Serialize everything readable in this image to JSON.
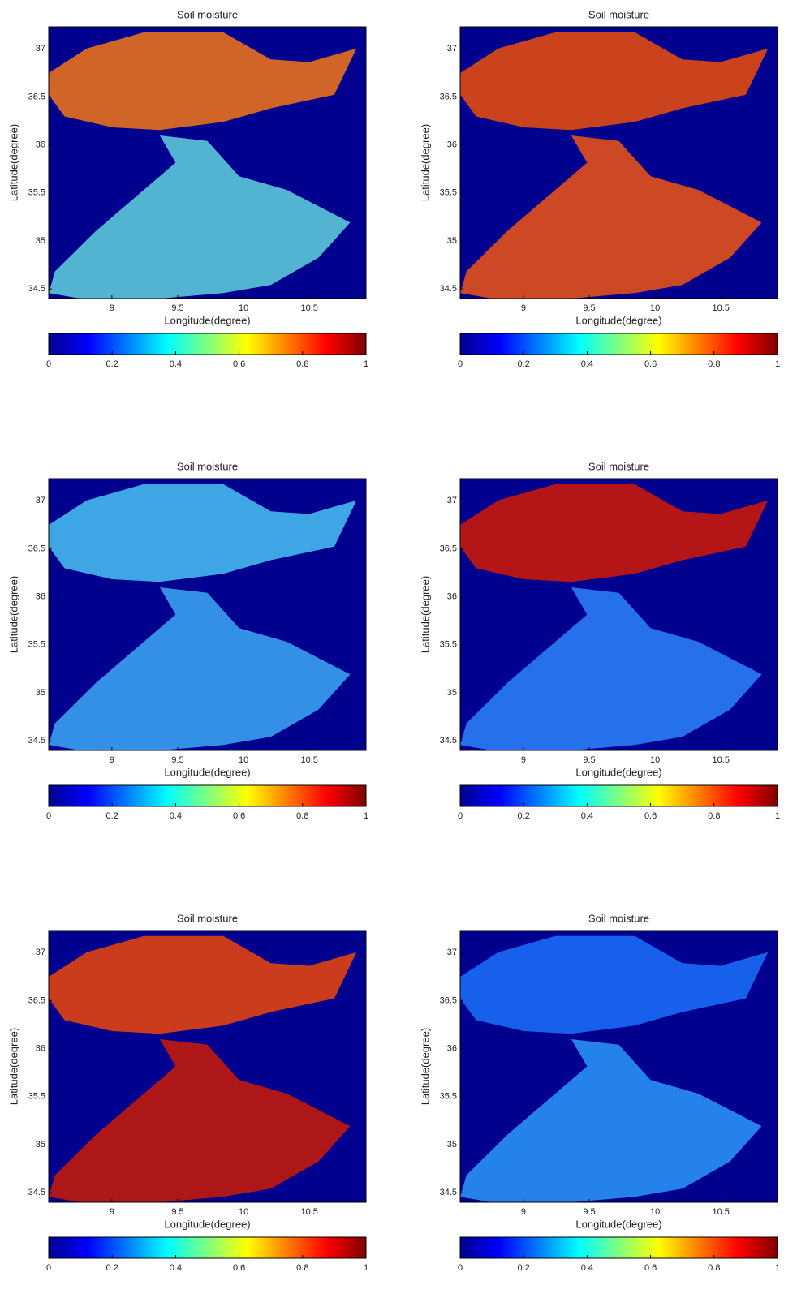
{
  "chart_data": [
    {
      "type": "heatmap",
      "title": "Soil moisture",
      "xlabel": "Longitude(degree)",
      "ylabel": "Latitude(degree)",
      "xlim": [
        8.52,
        10.93
      ],
      "ylim": [
        34.4,
        37.23
      ],
      "xticks": [
        9,
        9.5,
        10,
        10.5
      ],
      "yticks": [
        34.5,
        35,
        35.5,
        36,
        36.5,
        37
      ],
      "colorbar": {
        "lim": [
          0,
          1
        ],
        "ticks": [
          0,
          0.2,
          0.4,
          0.6,
          0.8,
          1
        ]
      }
    },
    {
      "type": "heatmap",
      "title": "Soil moisture",
      "xlabel": "Longitude(degree)",
      "ylabel": "Latitude(degree)",
      "xlim": [
        8.52,
        10.93
      ],
      "ylim": [
        34.4,
        37.23
      ],
      "xticks": [
        9,
        9.5,
        10,
        10.5
      ],
      "yticks": [
        34.5,
        35,
        35.5,
        36,
        36.5,
        37
      ],
      "colorbar": {
        "lim": [
          0,
          1
        ],
        "ticks": [
          0,
          0.2,
          0.4,
          0.6,
          0.8,
          1
        ]
      }
    },
    {
      "type": "heatmap",
      "title": "Soil moisture",
      "xlabel": "Longitude(degree)",
      "ylabel": "Latitude(degree)",
      "xlim": [
        8.52,
        10.93
      ],
      "ylim": [
        34.4,
        37.23
      ],
      "xticks": [
        9,
        9.5,
        10,
        10.5
      ],
      "yticks": [
        34.5,
        35,
        35.5,
        36,
        36.5,
        37
      ],
      "colorbar": {
        "lim": [
          0,
          1
        ],
        "ticks": [
          0,
          0.2,
          0.4,
          0.6,
          0.8,
          1
        ]
      }
    },
    {
      "type": "heatmap",
      "title": "Soil moisture",
      "xlabel": "Longitude(degree)",
      "ylabel": "Latitude(degree)",
      "xlim": [
        8.52,
        10.93
      ],
      "ylim": [
        34.4,
        37.23
      ],
      "xticks": [
        9,
        9.5,
        10,
        10.5
      ],
      "yticks": [
        34.5,
        35,
        35.5,
        36,
        36.5,
        37
      ],
      "colorbar": {
        "lim": [
          0,
          1
        ],
        "ticks": [
          0,
          0.2,
          0.4,
          0.6,
          0.8,
          1
        ]
      }
    },
    {
      "type": "heatmap",
      "title": "Soil moisture",
      "xlabel": "Longitude(degree)",
      "ylabel": "Latitude(degree)",
      "xlim": [
        8.52,
        10.93
      ],
      "ylim": [
        34.4,
        37.23
      ],
      "xticks": [
        9,
        9.5,
        10,
        10.5
      ],
      "yticks": [
        34.5,
        35,
        35.5,
        36,
        36.5,
        37
      ],
      "colorbar": {
        "lim": [
          0,
          1
        ],
        "ticks": [
          0,
          0.2,
          0.4,
          0.6,
          0.8,
          1
        ]
      }
    },
    {
      "type": "heatmap",
      "title": "Soil moisture",
      "xlabel": "Longitude(degree)",
      "ylabel": "Latitude(degree)",
      "xlim": [
        8.52,
        10.93
      ],
      "ylim": [
        34.4,
        37.23
      ],
      "xticks": [
        9,
        9.5,
        10,
        10.5
      ],
      "yticks": [
        34.5,
        35,
        35.5,
        36,
        36.5,
        37
      ],
      "colorbar": {
        "lim": [
          0,
          1
        ],
        "ticks": [
          0,
          0.2,
          0.4,
          0.6,
          0.8,
          1
        ]
      }
    }
  ]
}
